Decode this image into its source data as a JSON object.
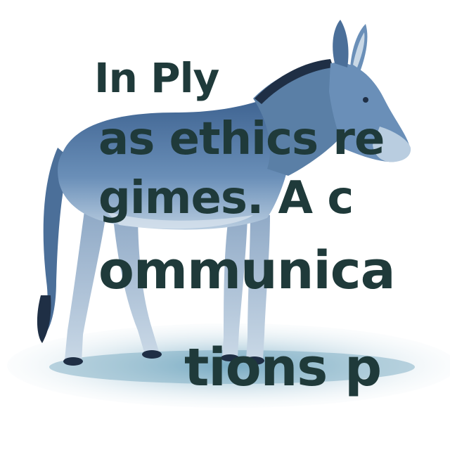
{
  "image": {
    "subject": "donkey",
    "palette": {
      "body": "#5a7fa6",
      "shadow": "#2e4f78",
      "light": "#a9c3dc",
      "ground": "#9fc6d8",
      "text": "#1f3a3a"
    }
  },
  "overlay_text": {
    "line1": "In Ply",
    "line2": "as ethics re",
    "line3": "gimes.  A c",
    "line4": "ommunica",
    "line5": "tions p"
  }
}
